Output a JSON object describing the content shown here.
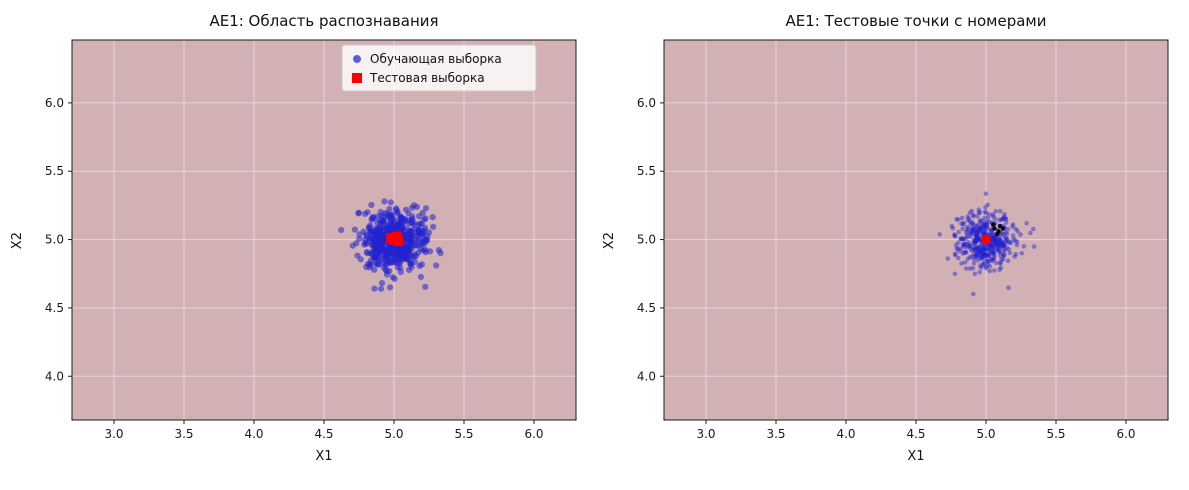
{
  "figure": {
    "background": "#ffffff"
  },
  "chart_data": [
    {
      "type": "scatter",
      "title": "AE1: Область распознавания",
      "xlabel": "X1",
      "ylabel": "X2",
      "xlim": [
        2.7,
        6.3
      ],
      "ylim": [
        3.68,
        6.46
      ],
      "xticks": [
        3.0,
        3.5,
        4.0,
        4.5,
        5.0,
        5.5,
        6.0
      ],
      "yticks": [
        4.0,
        4.5,
        5.0,
        5.5,
        6.0
      ],
      "grid": true,
      "region_color": "#d1b1b4",
      "grid_color": "rgba(255,255,255,0.45)",
      "axis_color": "#1a1a1a",
      "legend": {
        "visible": true,
        "position": "upper right",
        "background": "#ffffff",
        "border_color": "#cccccc",
        "entries": [
          {
            "label": "Обучающая выборка",
            "marker": "circle",
            "color": "#2a2ad2"
          },
          {
            "label": "Тестовая выборка",
            "marker": "square",
            "color": "#fe0000"
          }
        ]
      },
      "series": [
        {
          "name": "Обучающая выборка",
          "marker": "circle",
          "color": "#2222d0",
          "opacity": 0.55,
          "radius": 3.1,
          "cluster": {
            "center": [
              5.0,
              5.0
            ],
            "std": 0.115,
            "n": 520,
            "seed": 42
          }
        },
        {
          "name": "Тестовая выборка",
          "marker": "square",
          "color": "#fe0000",
          "opacity": 1,
          "size": 10,
          "points": [
            [
              4.98,
              5.01
            ],
            [
              5.0,
              5.0
            ],
            [
              5.02,
              5.02
            ],
            [
              5.03,
              4.99
            ]
          ]
        }
      ]
    },
    {
      "type": "scatter",
      "title": "AE1: Тестовые точки с номерами",
      "xlabel": "X1",
      "ylabel": "X2",
      "xlim": [
        2.7,
        6.3
      ],
      "ylim": [
        3.68,
        6.46
      ],
      "xticks": [
        3.0,
        3.5,
        4.0,
        4.5,
        5.0,
        5.5,
        6.0
      ],
      "yticks": [
        4.0,
        4.5,
        5.0,
        5.5,
        6.0
      ],
      "grid": true,
      "region_color": "#d1b1b4",
      "grid_color": "rgba(255,255,255,0.45)",
      "axis_color": "#1a1a1a",
      "legend": {
        "visible": false,
        "entries": []
      },
      "series": [
        {
          "name": "Обучающая выборка",
          "marker": "circle",
          "color": "#2222d0",
          "opacity": 0.45,
          "radius": 2.3,
          "cluster": {
            "center": [
              5.0,
              5.0
            ],
            "std": 0.105,
            "n": 420,
            "seed": 7
          }
        },
        {
          "name": "Тестовые точки",
          "marker": "circle",
          "color": "#000000",
          "opacity": 0.9,
          "radius": 2.2,
          "points": [
            [
              5.06,
              5.08
            ],
            [
              5.09,
              5.06
            ],
            [
              5.05,
              5.11
            ],
            [
              5.1,
              5.1
            ],
            [
              5.08,
              5.04
            ],
            [
              5.12,
              5.08
            ]
          ]
        },
        {
          "name": "Тестовая выборка",
          "marker": "square",
          "color": "#fe0000",
          "opacity": 1,
          "size": 9,
          "points": [
            [
              5.0,
              5.0
            ]
          ]
        }
      ]
    }
  ]
}
